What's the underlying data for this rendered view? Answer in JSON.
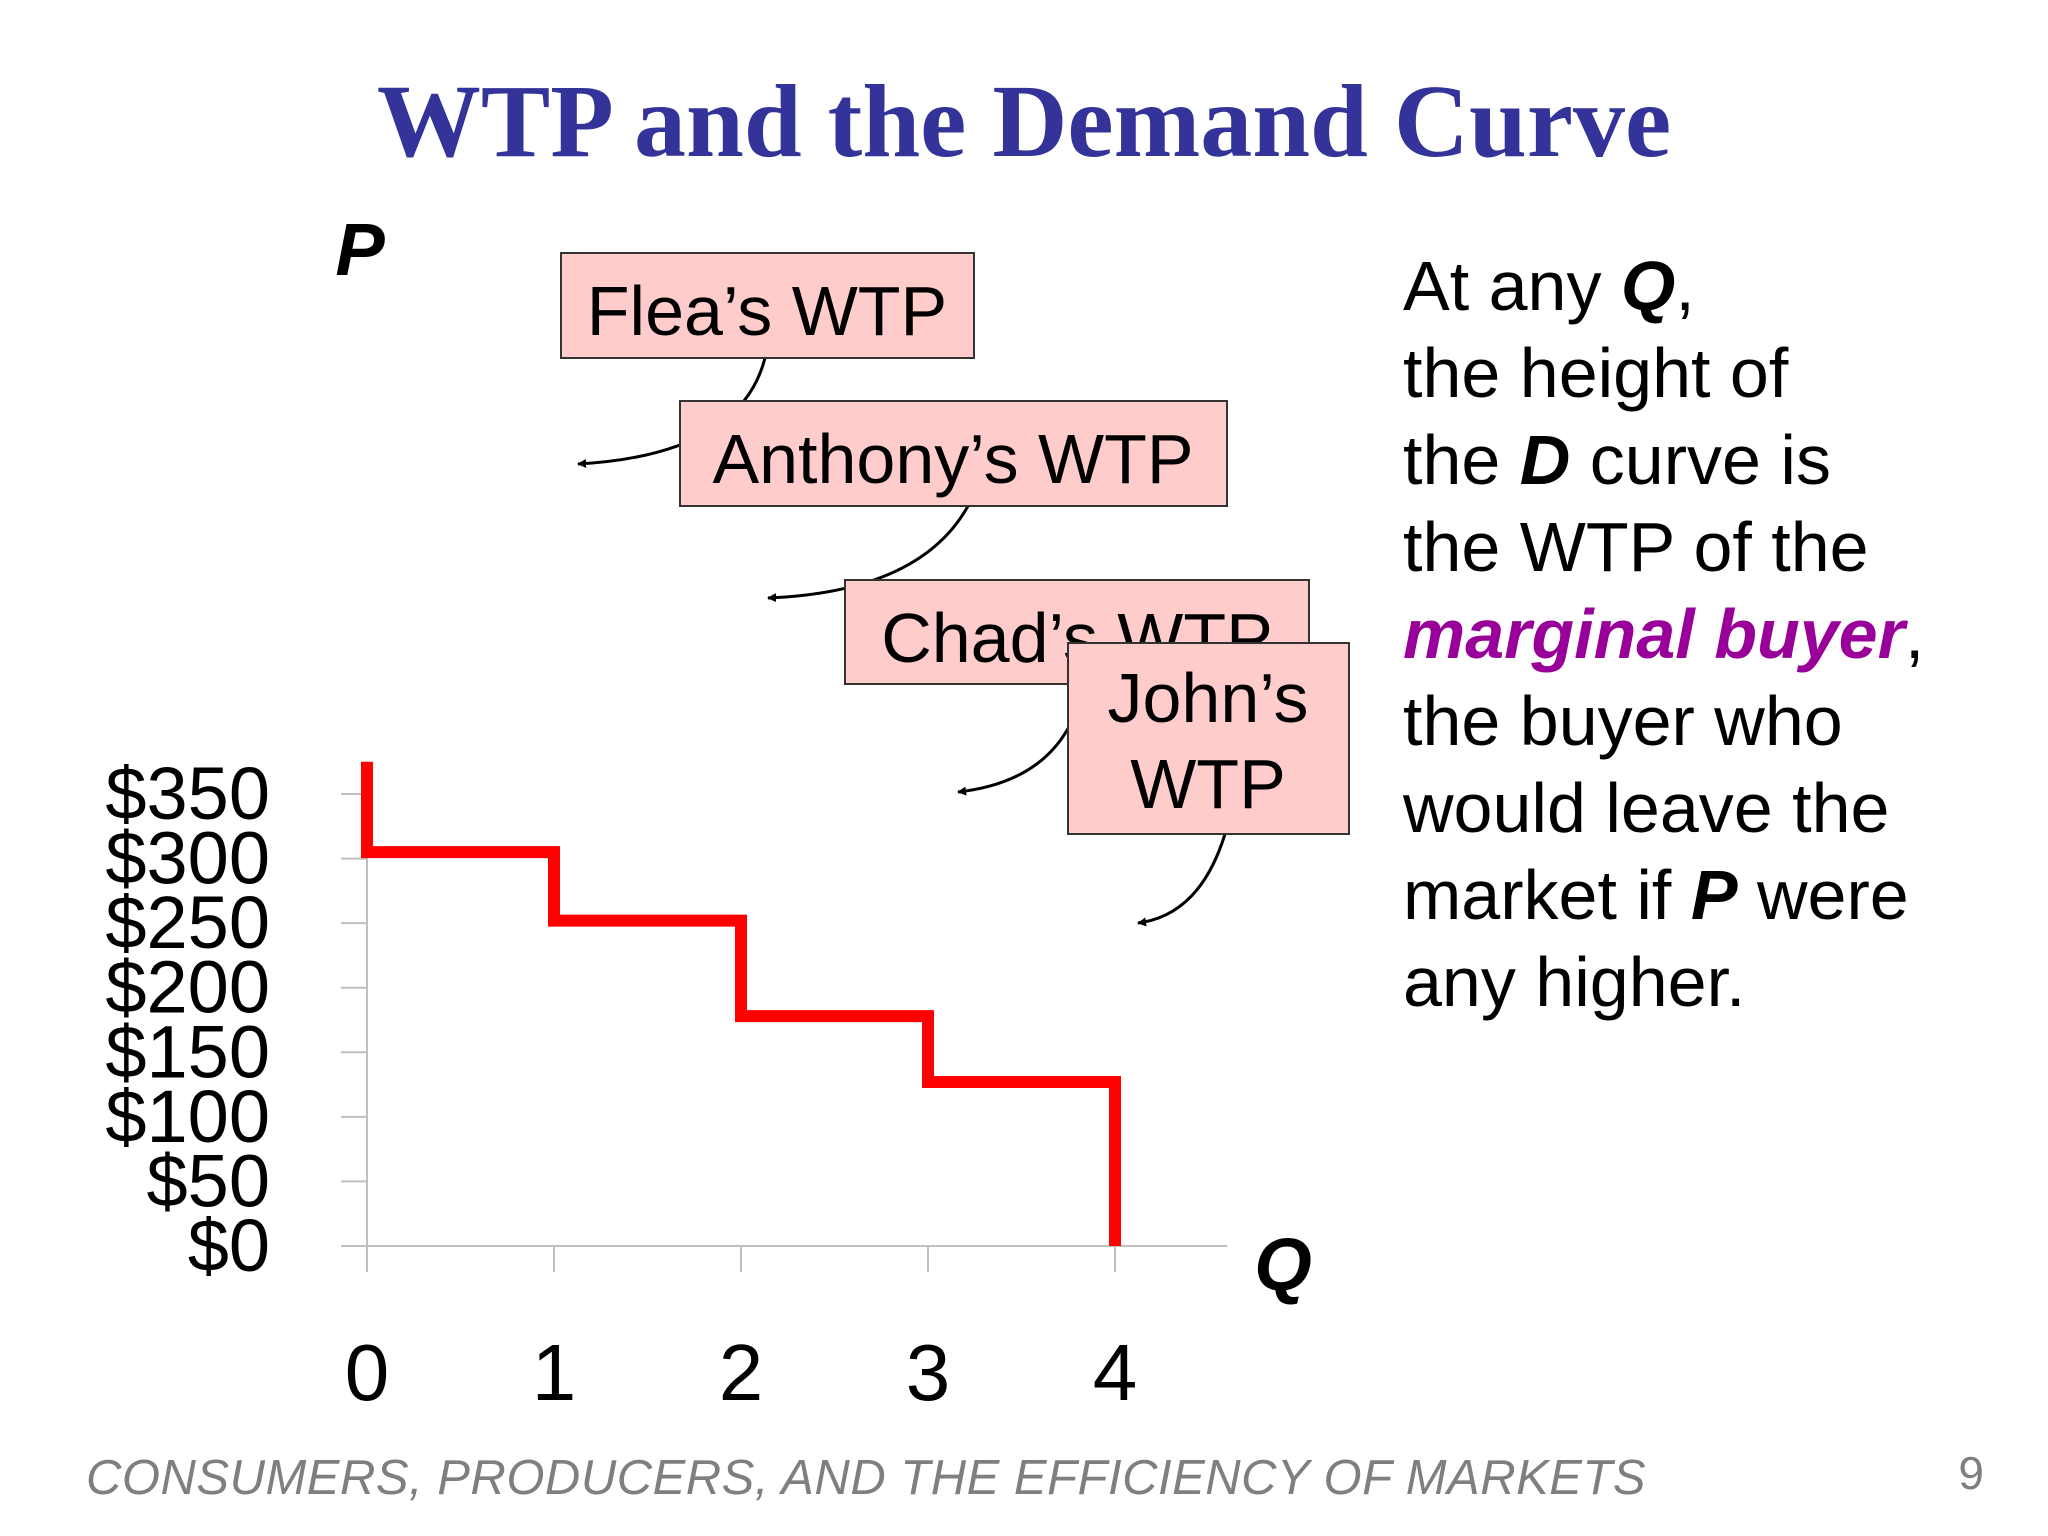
{
  "slide": {
    "title": "WTP and the Demand Curve",
    "footer": "CONSUMERS, PRODUCERS, AND THE EFFICIENCY OF MARKETS",
    "page_number": "9"
  },
  "explanation": {
    "l1_a": "At any ",
    "l1_b": "Q",
    "l1_c": ",",
    "l2": "the height of",
    "l3_a": "the ",
    "l3_b": "D",
    "l3_c": " curve is",
    "l4": "the WTP of the",
    "l5_a": "marginal buyer",
    "l5_b": ",",
    "l6": "the buyer who",
    "l7": "would leave the",
    "l8_a": "market if ",
    "l8_b": "P",
    "l8_c": " were",
    "l9": "any higher."
  },
  "colors": {
    "title": "#333399",
    "demand_curve": "#ff0000",
    "callout_fill": "#ffcccc",
    "highlight": "#990099",
    "footer": "#7f7f7f"
  },
  "chart_data": {
    "type": "line",
    "step": true,
    "x_axis_label": "Q",
    "y_axis_label": "P",
    "x_ticks": [
      "0",
      "1",
      "2",
      "3",
      "4"
    ],
    "y_ticks": [
      "$0",
      "$50",
      "$100",
      "$150",
      "$200",
      "$250",
      "$300",
      "$350"
    ],
    "xlim": [
      0,
      4.6
    ],
    "ylim": [
      0,
      375
    ],
    "grid": false,
    "series": [
      {
        "points": [
          [
            0,
            375
          ],
          [
            0,
            305
          ],
          [
            1,
            305
          ],
          [
            1,
            252
          ],
          [
            2,
            252
          ],
          [
            2,
            178
          ],
          [
            3,
            178
          ],
          [
            3,
            127
          ],
          [
            4,
            127
          ],
          [
            4,
            0
          ]
        ]
      }
    ],
    "callouts": [
      {
        "lines": [
          "Flea’s WTP"
        ],
        "points_to": [
          1,
          305
        ]
      },
      {
        "lines": [
          "Anthony’s WTP"
        ],
        "points_to": [
          2,
          252
        ]
      },
      {
        "lines": [
          "Chad’s WTP"
        ],
        "points_to": [
          3,
          178
        ]
      },
      {
        "lines": [
          "John’s",
          "WTP"
        ],
        "points_to": [
          4,
          127
        ]
      }
    ]
  }
}
